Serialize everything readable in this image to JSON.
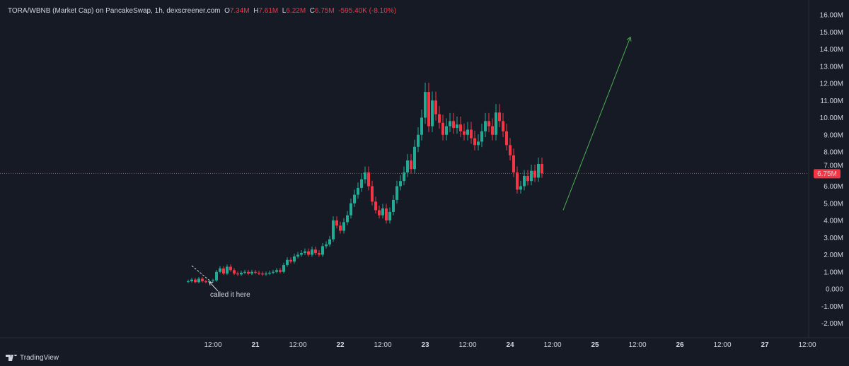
{
  "header": {
    "pair": "TORA/WBNB (Market Cap) on PancakeSwap, 1h, dexscreener.com",
    "o_label": "O",
    "o": "7.34M",
    "h_label": "H",
    "h": "7.61M",
    "l_label": "L",
    "l": "6.22M",
    "c_label": "C",
    "c": "6.75M",
    "change": "-595.40K (-8.10%)"
  },
  "brand": "TradingView",
  "colors": {
    "up": "#22ab94",
    "down": "#f23645",
    "arrow": "#4caf50",
    "bg": "#161a25"
  },
  "chart_data": {
    "type": "candlestick",
    "interval": "1h",
    "start": "20 05:00",
    "closes": [
      0.45,
      0.55,
      0.4,
      0.6,
      0.45,
      0.4,
      0.45,
      0.5,
      1.0,
      1.2,
      0.9,
      1.3,
      1.1,
      0.9,
      0.85,
      0.95,
      1.0,
      0.9,
      1.0,
      0.95,
      0.9,
      0.85,
      0.9,
      0.95,
      1.0,
      1.1,
      1.0,
      1.4,
      1.7,
      1.6,
      1.9,
      2.0,
      2.1,
      2.2,
      2.0,
      2.3,
      2.1,
      2.0,
      2.5,
      2.6,
      2.9,
      4.0,
      3.7,
      3.4,
      3.9,
      4.3,
      5.0,
      5.5,
      5.9,
      6.4,
      6.8,
      6.0,
      5.1,
      4.6,
      4.3,
      4.7,
      4.0,
      4.5,
      5.2,
      6.0,
      6.3,
      6.8,
      7.5,
      7.0,
      8.3,
      9.0,
      10.0,
      11.5,
      9.5,
      11.0,
      10.2,
      9.7,
      9.0,
      9.5,
      9.8,
      9.4,
      9.6,
      9.2,
      9.0,
      9.3,
      8.8,
      8.4,
      8.6,
      9.2,
      9.8,
      9.5,
      9.0,
      10.3,
      9.8,
      9.2,
      8.4,
      7.8,
      6.8,
      5.8,
      6.0,
      6.6,
      6.3,
      6.9,
      6.5,
      7.3,
      6.75
    ],
    "last_price": 6.75,
    "last_price_label": "6.75M",
    "y_ticks": [
      "16.00M",
      "15.00M",
      "14.00M",
      "13.00M",
      "12.00M",
      "11.00M",
      "10.00M",
      "9.00M",
      "8.00M",
      "7.00M",
      "6.00M",
      "5.00M",
      "4.00M",
      "3.00M",
      "2.00M",
      "1.00M",
      "0.000",
      "-1.00M",
      "-2.00M"
    ],
    "y_range": [
      -2.5,
      16.5
    ],
    "x_ticks": [
      "12:00",
      "21",
      "12:00",
      "22",
      "12:00",
      "23",
      "12:00",
      "24",
      "12:00",
      "25",
      "12:00",
      "26",
      "12:00",
      "27",
      "12:00"
    ],
    "annotations": {
      "note": "called it here",
      "arrow_from": {
        "time": "24 15:00",
        "value": 4.6
      },
      "arrow_to": {
        "time": "25 10:00",
        "value": 14.7
      },
      "dashed_from": {
        "time": "20 06:00",
        "value": 1.36
      },
      "dashed_to": {
        "time": "20 11:00",
        "value": 0.5
      }
    }
  }
}
